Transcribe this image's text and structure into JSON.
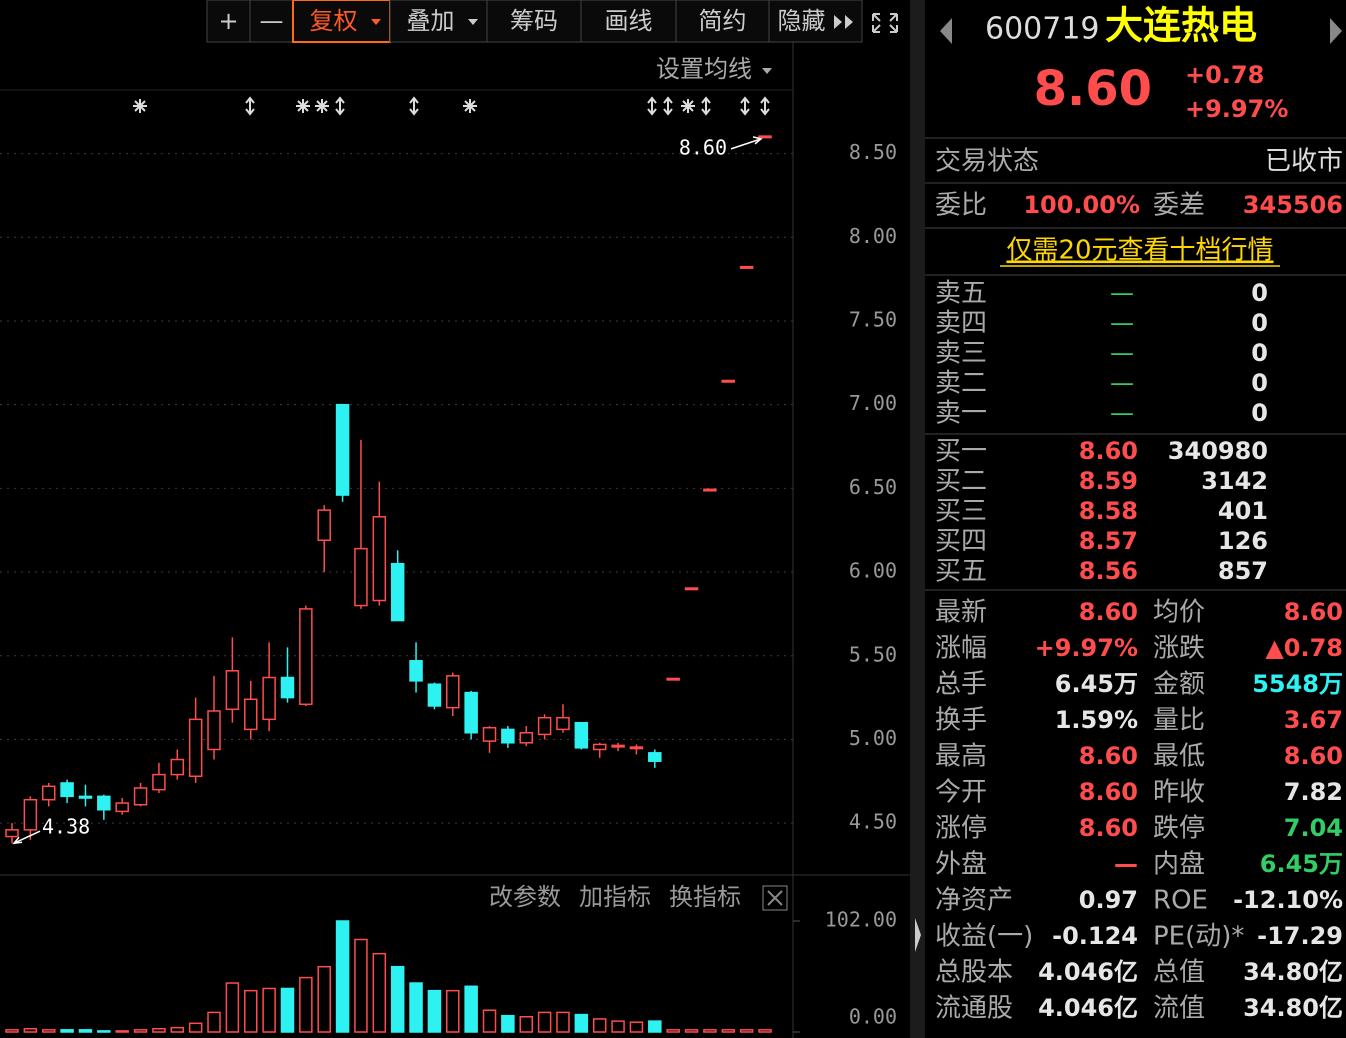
{
  "toolbar": {
    "buttons": [
      "+",
      "—",
      "复权",
      "叠加",
      "筹码",
      "画线",
      "简约",
      "隐藏"
    ],
    "ma_setting": "设置均线"
  },
  "chart_data": [
    {
      "type": "candlestick",
      "open": [
        4.42,
        4.46,
        4.64,
        4.74,
        4.66,
        4.66,
        4.57,
        4.61,
        4.7,
        4.79,
        4.78,
        4.94,
        5.18,
        5.06,
        5.12,
        5.37,
        5.21,
        6.19,
        7.0,
        5.8,
        5.83,
        6.05,
        5.47,
        5.33,
        5.19,
        5.28,
        4.99,
        5.06,
        4.98,
        5.03,
        5.06,
        5.1,
        4.94,
        4.96,
        4.95,
        4.92,
        5.36,
        5.9,
        6.49,
        7.14,
        7.82,
        8.6
      ],
      "high": [
        4.5,
        4.66,
        4.74,
        4.76,
        4.73,
        4.67,
        4.65,
        4.74,
        4.86,
        4.94,
        5.25,
        5.38,
        5.61,
        5.35,
        5.58,
        5.55,
        5.8,
        6.4,
        7.0,
        6.79,
        6.54,
        6.13,
        5.58,
        5.34,
        5.4,
        5.29,
        5.08,
        5.08,
        5.08,
        5.15,
        5.21,
        5.1,
        4.98,
        4.98,
        4.97,
        4.94,
        5.36,
        5.9,
        6.49,
        7.14,
        7.82,
        8.6
      ],
      "low": [
        4.38,
        4.4,
        4.6,
        4.62,
        4.6,
        4.52,
        4.55,
        4.6,
        4.68,
        4.76,
        4.74,
        4.88,
        5.1,
        5.0,
        5.05,
        5.22,
        5.2,
        6.0,
        6.42,
        5.78,
        5.8,
        5.71,
        5.28,
        5.18,
        5.14,
        5.0,
        4.92,
        4.95,
        4.96,
        5.0,
        5.04,
        4.94,
        4.89,
        4.93,
        4.91,
        4.83,
        5.36,
        5.9,
        6.49,
        7.14,
        7.82,
        8.6
      ],
      "close": [
        4.46,
        4.64,
        4.72,
        4.66,
        4.65,
        4.58,
        4.62,
        4.71,
        4.79,
        4.88,
        5.12,
        5.17,
        5.41,
        5.24,
        5.37,
        5.25,
        5.78,
        6.37,
        6.46,
        6.14,
        6.33,
        5.71,
        5.35,
        5.2,
        5.38,
        5.04,
        5.07,
        4.98,
        5.04,
        5.13,
        5.13,
        4.95,
        4.97,
        4.96,
        4.95,
        4.87,
        5.36,
        5.9,
        6.49,
        7.14,
        7.82,
        8.6
      ],
      "up_color": "#ff4d4d",
      "down_color": "#2ef2f2",
      "ylim": [
        4.22,
        8.88
      ],
      "yticks": [
        {
          "value": 4.5,
          "label": "4.50"
        },
        {
          "value": 5,
          "label": "5.00"
        },
        {
          "value": 5.5,
          "label": "5.50"
        },
        {
          "value": 6,
          "label": "6.00"
        },
        {
          "value": 6.5,
          "label": "6.50"
        },
        {
          "value": 7,
          "label": "7.00"
        },
        {
          "value": 7.5,
          "label": "7.50"
        },
        {
          "value": 8,
          "label": "8.00"
        },
        {
          "value": 8.5,
          "label": "8.50"
        }
      ],
      "grid": true,
      "annotations": [
        {
          "value": 8.6,
          "label": "8.60"
        },
        {
          "value": 4.38,
          "label": "4.38"
        }
      ]
    },
    {
      "type": "bar",
      "values": [
        2,
        3,
        2,
        2,
        2,
        1,
        1,
        2,
        3,
        4,
        8,
        18,
        45,
        38,
        40,
        40,
        50,
        60,
        102,
        85,
        72,
        60,
        45,
        38,
        38,
        42,
        20,
        15,
        14,
        18,
        18,
        16,
        12,
        10,
        9,
        10,
        2,
        2,
        2,
        2,
        2,
        2
      ],
      "ylim": [
        0,
        102
      ],
      "yticks": [
        {
          "value": 0,
          "label": "0.00"
        },
        {
          "value": 102,
          "label": "102.00"
        }
      ],
      "buttons": [
        "改参数",
        "加指标",
        "换指标"
      ]
    }
  ],
  "quote": {
    "code": "600719",
    "name": "大连热电",
    "price": "8.60",
    "change": "+0.78",
    "change_pct": "+9.97%",
    "status_label": "交易状态",
    "status": "已收市",
    "ratio_label": "委比",
    "ratio": "100.00%",
    "diff_label": "委差",
    "diff": "345506",
    "promo": "仅需20元查看十档行情",
    "ask_color": "#33cc66",
    "bid_color": "#ff4d4d",
    "asks": [
      {
        "label": "卖五",
        "price": "—",
        "volume": "0"
      },
      {
        "label": "卖四",
        "price": "—",
        "volume": "0"
      },
      {
        "label": "卖三",
        "price": "—",
        "volume": "0"
      },
      {
        "label": "卖二",
        "price": "—",
        "volume": "0"
      },
      {
        "label": "卖一",
        "price": "—",
        "volume": "0"
      }
    ],
    "bids": [
      {
        "label": "买一",
        "price": "8.60",
        "volume": "340980"
      },
      {
        "label": "买二",
        "price": "8.59",
        "volume": "3142"
      },
      {
        "label": "买三",
        "price": "8.58",
        "volume": "401"
      },
      {
        "label": "买四",
        "price": "8.57",
        "volume": "126"
      },
      {
        "label": "买五",
        "price": "8.56",
        "volume": "857"
      }
    ],
    "stats": [
      {
        "label": "最新",
        "value": "8.60",
        "color": "#ff4d4d"
      },
      {
        "label": "均价",
        "value": "8.60",
        "color": "#ff4d4d"
      },
      {
        "label": "涨幅",
        "value": "+9.97%",
        "color": "#ff4d4d"
      },
      {
        "label": "涨跌",
        "value": "▲0.78",
        "color": "#ff4d4d"
      },
      {
        "label": "总手",
        "value": "6.45万",
        "color": "#e6e6e6"
      },
      {
        "label": "金额",
        "value": "5548万",
        "color": "#2ef2f2"
      },
      {
        "label": "换手",
        "value": "1.59%",
        "color": "#e6e6e6"
      },
      {
        "label": "量比",
        "value": "3.67",
        "color": "#ff4d4d"
      },
      {
        "label": "最高",
        "value": "8.60",
        "color": "#ff4d4d"
      },
      {
        "label": "最低",
        "value": "8.60",
        "color": "#ff4d4d"
      },
      {
        "label": "今开",
        "value": "8.60",
        "color": "#ff4d4d"
      },
      {
        "label": "昨收",
        "value": "7.82",
        "color": "#e6e6e6"
      },
      {
        "label": "涨停",
        "value": "8.60",
        "color": "#ff4d4d"
      },
      {
        "label": "跌停",
        "value": "7.04",
        "color": "#33cc66"
      },
      {
        "label": "外盘",
        "value": "—",
        "color": "#ff4d4d"
      },
      {
        "label": "内盘",
        "value": "6.45万",
        "color": "#33cc66"
      },
      {
        "label": "净资产",
        "value": "0.97",
        "color": "#e6e6e6"
      },
      {
        "label": "ROE",
        "value": "-12.10%",
        "color": "#e6e6e6"
      },
      {
        "label": "收益(一)",
        "value": "-0.124",
        "color": "#e6e6e6"
      },
      {
        "label": "PE(动)*",
        "value": "-17.29",
        "color": "#e6e6e6"
      },
      {
        "label": "总股本",
        "value": "4.046亿",
        "color": "#e6e6e6"
      },
      {
        "label": "总值",
        "value": "34.80亿",
        "color": "#e6e6e6"
      },
      {
        "label": "流通股",
        "value": "4.046亿",
        "color": "#e6e6e6"
      },
      {
        "label": "流值",
        "value": "34.80亿",
        "color": "#e6e6e6"
      }
    ]
  }
}
